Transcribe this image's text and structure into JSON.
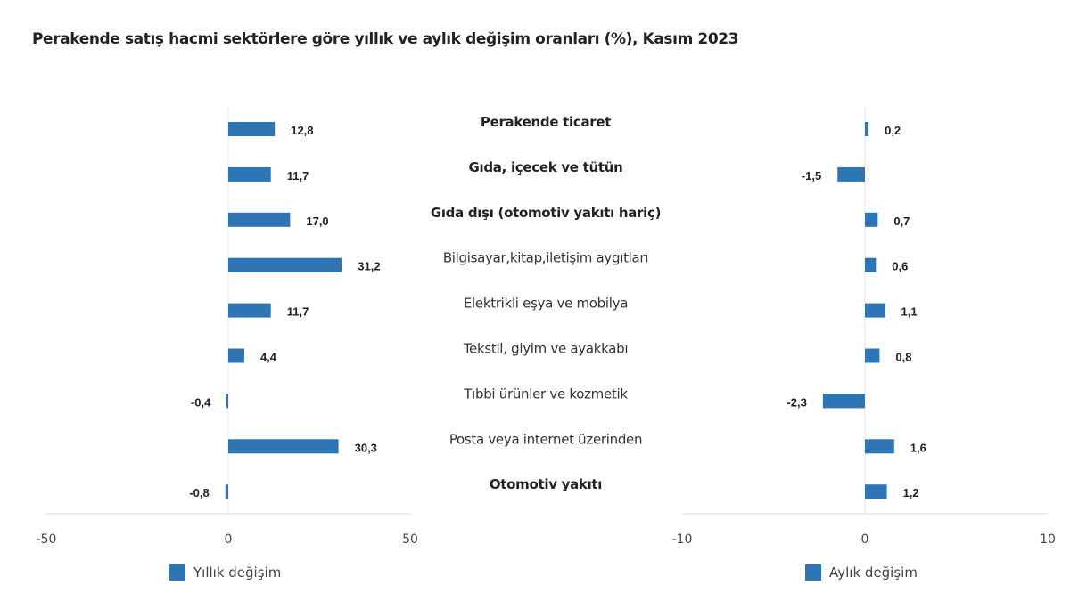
{
  "title": "Perakende satış hacmi sektörlere göre yıllık ve aylık değişim oranları (%), Kasım 2023",
  "colors": {
    "bar": "#2e75b6",
    "axis": "#d9d9d9",
    "text": "#222222"
  },
  "chart_data": [
    {
      "type": "bar",
      "orientation": "horizontal",
      "title": "Perakende satış hacmi sektörlere göre yıllık ve aylık değişim oranları (%), Kasım 2023",
      "legend": "Yıllık değişim",
      "legend_position": "bottom",
      "xlim": [
        -50,
        50
      ],
      "ticks": [
        "-50",
        "0",
        "50"
      ],
      "categories": [
        "Perakende ticaret",
        "Gıda, içecek ve tütün",
        "Gıda dışı (otomotiv yakıtı hariç)",
        "Bilgisayar,kitap,iletişim aygıtları",
        "Elektrikli eşya ve mobilya",
        "Tekstil, giyim ve ayakkabı",
        "Tıbbi ürünler ve kozmetik",
        "Posta veya internet üzerinden",
        "Otomotiv yakıtı"
      ],
      "bold_categories": [
        true,
        true,
        true,
        false,
        false,
        false,
        false,
        false,
        true
      ],
      "values": [
        12.8,
        11.7,
        17.0,
        31.2,
        11.7,
        4.4,
        -0.4,
        30.3,
        -0.8
      ],
      "labels": [
        "12,8",
        "11,7",
        "17,0",
        "31,2",
        "11,7",
        "4,4",
        "-0,4",
        "30,3",
        "-0,8"
      ],
      "grid": false
    },
    {
      "type": "bar",
      "orientation": "horizontal",
      "legend": "Aylık değişim",
      "legend_position": "bottom",
      "xlim": [
        -10,
        10
      ],
      "ticks": [
        "-10",
        "0",
        "10"
      ],
      "values": [
        0.2,
        -1.5,
        0.7,
        0.6,
        1.1,
        0.8,
        -2.3,
        1.6,
        1.2
      ],
      "labels": [
        "0,2",
        "-1,5",
        "0,7",
        "0,6",
        "1,1",
        "0,8",
        "-2,3",
        "1,6",
        "1,2"
      ],
      "grid": false
    }
  ]
}
